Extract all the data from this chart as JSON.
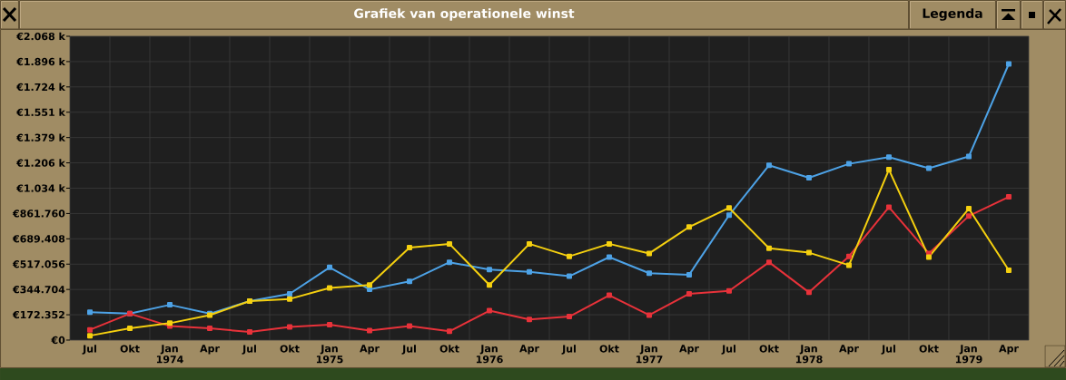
{
  "chart_data": {
    "type": "line",
    "title": "Grafiek van operationele winst",
    "categories": [
      "Jul",
      "Okt",
      "Jan 1974",
      "Apr",
      "Jul",
      "Okt",
      "Jan 1975",
      "Apr",
      "Jul",
      "Okt",
      "Jan 1976",
      "Apr",
      "Jul",
      "Okt",
      "Jan 1977",
      "Apr",
      "Jul",
      "Okt",
      "Jan 1978",
      "Apr",
      "Jul",
      "Okt",
      "Jan 1979",
      "Apr"
    ],
    "series": [
      {
        "color": "#4da2e6",
        "values": [
          190,
          180,
          240,
          180,
          265,
          315,
          495,
          345,
          400,
          530,
          480,
          465,
          435,
          565,
          455,
          445,
          850,
          1190,
          1105,
          1200,
          1245,
          1170,
          1250,
          1880
        ]
      },
      {
        "color": "#e8323a",
        "values": [
          70,
          180,
          95,
          80,
          55,
          90,
          105,
          65,
          95,
          60,
          200,
          140,
          160,
          305,
          170,
          315,
          335,
          530,
          325,
          570,
          905,
          590,
          845,
          975
        ]
      },
      {
        "color": "#f5d00f",
        "values": [
          30,
          80,
          115,
          170,
          265,
          280,
          355,
          375,
          630,
          655,
          375,
          655,
          570,
          655,
          590,
          770,
          900,
          625,
          595,
          510,
          1160,
          565,
          895,
          475
        ]
      }
    ],
    "ylim": [
      0,
      2068.224
    ],
    "yticks": [
      {
        "value": 0,
        "label": "€0"
      },
      {
        "value": 172.352,
        "label": "€172.352"
      },
      {
        "value": 344.704,
        "label": "€344.704"
      },
      {
        "value": 517.056,
        "label": "€517.056"
      },
      {
        "value": 689.408,
        "label": "€689.408"
      },
      {
        "value": 861.76,
        "label": "€861.760"
      },
      {
        "value": 1034.112,
        "label": "€1.034 k"
      },
      {
        "value": 1206.464,
        "label": "€1.206 k"
      },
      {
        "value": 1378.816,
        "label": "€1.379 k"
      },
      {
        "value": 1551.168,
        "label": "€1.551 k"
      },
      {
        "value": 1723.52,
        "label": "€1.724 k"
      },
      {
        "value": 1895.872,
        "label": "€1.896 k"
      },
      {
        "value": 2068.224,
        "label": "€2.068 k"
      }
    ],
    "grid": true,
    "marker": "square",
    "line_style": "solid",
    "annotations": [
      "Legenda"
    ]
  }
}
